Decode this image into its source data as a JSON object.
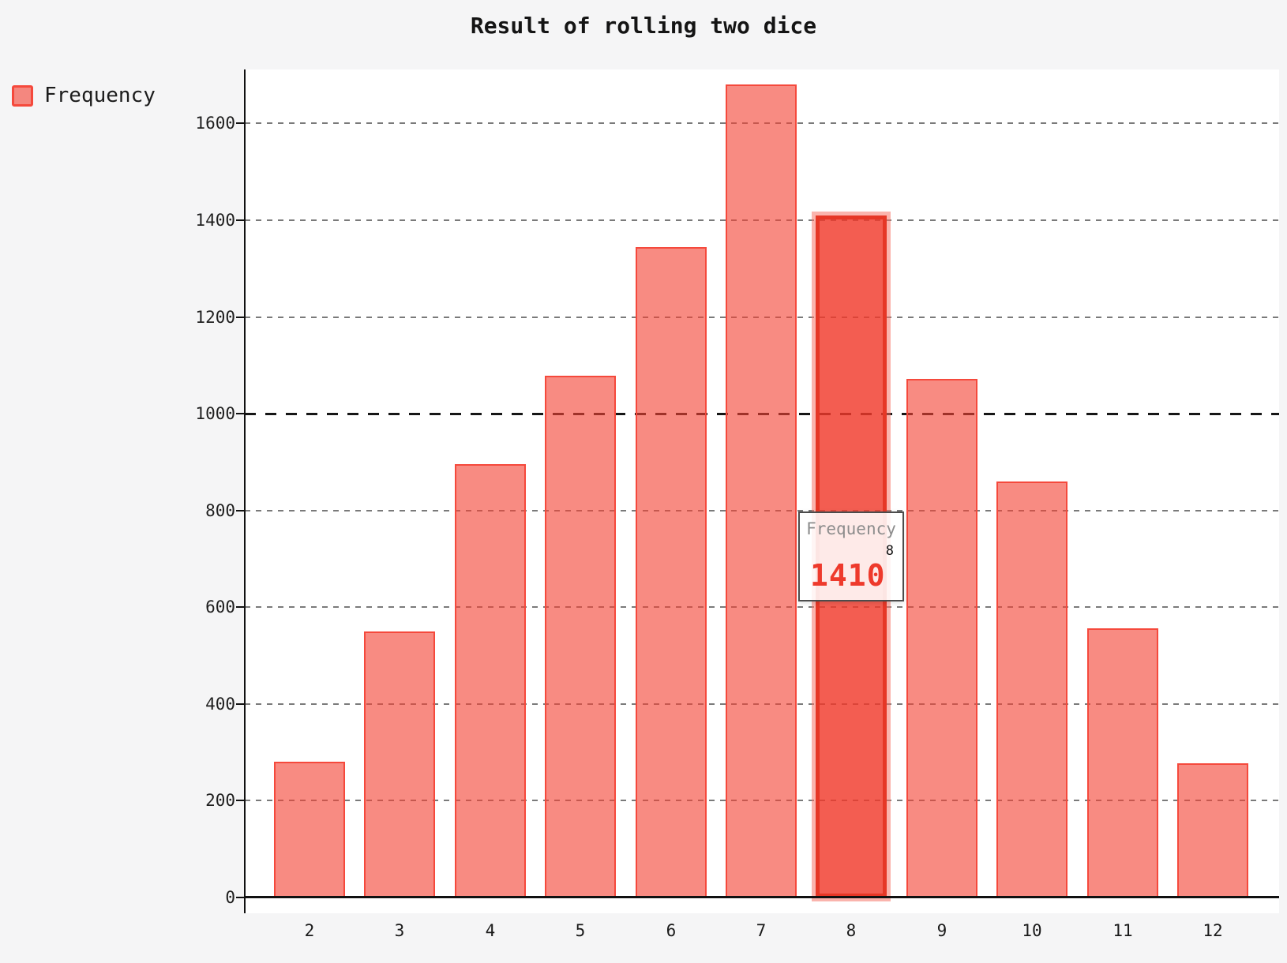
{
  "chart_data": {
    "type": "bar",
    "title": "Result of rolling two dice",
    "series": [
      {
        "name": "Frequency",
        "values": [
          280,
          550,
          895,
          1078,
          1345,
          1680,
          1410,
          1072,
          860,
          557,
          278
        ]
      }
    ],
    "categories": [
      "2",
      "3",
      "4",
      "5",
      "6",
      "7",
      "8",
      "9",
      "10",
      "11",
      "12"
    ],
    "xlabel": "",
    "ylabel": "",
    "ylim": [
      0,
      1725
    ],
    "yticks": [
      0,
      200,
      400,
      600,
      800,
      1000,
      1200,
      1400,
      1600
    ],
    "emphasized_gridline": 1000,
    "grid": "dashed-horizontal",
    "legend_position": "top-left",
    "highlighted_category": "8",
    "highlighted_value": 1410
  },
  "legend": {
    "label": "Frequency"
  },
  "tooltip": {
    "series_label": "Frequency",
    "value": "1410",
    "category": "8"
  },
  "colors": {
    "background": "#f5f5f6",
    "plot_background": "#ffffff",
    "axis": "#111111",
    "gridline": "#7a7a7a",
    "gridline_emphasis": "#161616",
    "bar_fill": "rgba(244,67,54,0.62)",
    "bar_border": "#f5493c",
    "bar_highlight_fill": "rgba(240,57,43,0.82)",
    "bar_highlight_border": "#e63726",
    "tooltip_value_color": "#ee3a2c"
  }
}
